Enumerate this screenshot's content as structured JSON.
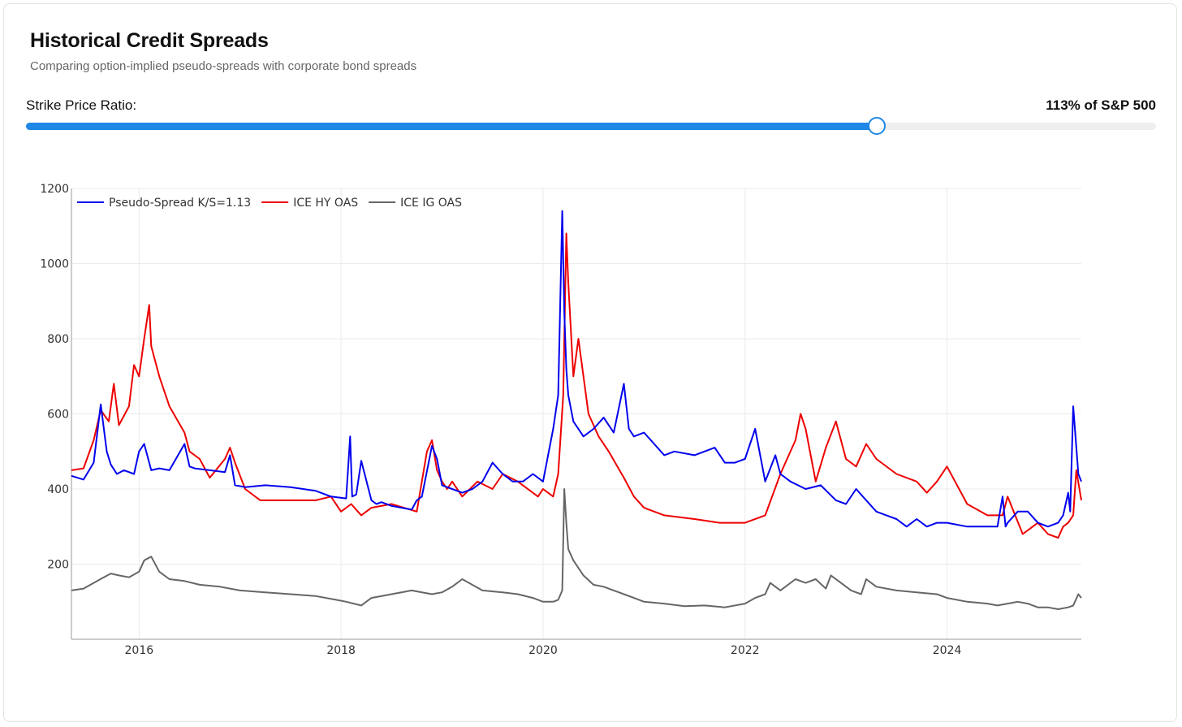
{
  "header": {
    "title": "Historical Credit Spreads",
    "subtitle": "Comparing option-implied pseudo-spreads with corporate bond spreads"
  },
  "slider": {
    "label": "Strike Price Ratio:",
    "value_text": "113% of S&P 500",
    "fraction": 0.753,
    "accent_color": "#1f87e5"
  },
  "chart_data": {
    "type": "line",
    "title": "",
    "xlabel": "",
    "ylabel": "",
    "xlim": [
      2015.33,
      2025.33
    ],
    "ylim": [
      20,
      1200
    ],
    "grid": true,
    "legend_position": "top-left",
    "x_ticks": [
      2016,
      2018,
      2020,
      2022,
      2024
    ],
    "x_tick_labels": [
      "2016",
      "2018",
      "2020",
      "2022",
      "2024"
    ],
    "y_ticks": [
      200,
      400,
      600,
      800,
      1000,
      1200
    ],
    "y_tick_labels": [
      "200",
      "400",
      "600",
      "800",
      "1000",
      "1200"
    ],
    "series": [
      {
        "name": "Pseudo-Spread K/S=1.13",
        "color": "#0000ee",
        "x": [
          2015.33,
          2015.45,
          2015.55,
          2015.62,
          2015.68,
          2015.72,
          2015.78,
          2015.85,
          2015.95,
          2016.0,
          2016.05,
          2016.12,
          2016.2,
          2016.3,
          2016.45,
          2016.5,
          2016.55,
          2016.7,
          2016.85,
          2016.9,
          2016.95,
          2017.05,
          2017.25,
          2017.5,
          2017.75,
          2017.9,
          2018.05,
          2018.09,
          2018.11,
          2018.15,
          2018.2,
          2018.3,
          2018.35,
          2018.4,
          2018.5,
          2018.7,
          2018.75,
          2018.8,
          2018.9,
          2018.95,
          2019.0,
          2019.1,
          2019.2,
          2019.3,
          2019.4,
          2019.5,
          2019.6,
          2019.7,
          2019.8,
          2019.9,
          2020.0,
          2020.1,
          2020.15,
          2020.19,
          2020.21,
          2020.23,
          2020.25,
          2020.3,
          2020.4,
          2020.5,
          2020.6,
          2020.7,
          2020.8,
          2020.85,
          2020.9,
          2021.0,
          2021.1,
          2021.2,
          2021.3,
          2021.5,
          2021.7,
          2021.8,
          2021.9,
          2022.0,
          2022.1,
          2022.2,
          2022.3,
          2022.35,
          2022.45,
          2022.6,
          2022.75,
          2022.9,
          2023.0,
          2023.1,
          2023.2,
          2023.3,
          2023.4,
          2023.5,
          2023.6,
          2023.7,
          2023.8,
          2023.9,
          2024.0,
          2024.2,
          2024.4,
          2024.5,
          2024.55,
          2024.58,
          2024.6,
          2024.7,
          2024.8,
          2024.9,
          2025.0,
          2025.1,
          2025.15,
          2025.2,
          2025.22,
          2025.25,
          2025.3,
          2025.33
        ],
        "y": [
          435,
          425,
          470,
          625,
          500,
          465,
          440,
          450,
          440,
          500,
          520,
          450,
          455,
          450,
          520,
          460,
          455,
          450,
          445,
          490,
          410,
          405,
          410,
          405,
          395,
          380,
          375,
          540,
          380,
          385,
          475,
          370,
          360,
          365,
          355,
          345,
          370,
          380,
          515,
          480,
          410,
          400,
          390,
          400,
          420,
          470,
          440,
          420,
          420,
          440,
          420,
          560,
          650,
          1140,
          870,
          720,
          650,
          580,
          540,
          560,
          590,
          550,
          680,
          560,
          540,
          550,
          520,
          490,
          500,
          490,
          510,
          470,
          470,
          480,
          560,
          420,
          490,
          440,
          420,
          400,
          410,
          370,
          360,
          400,
          370,
          340,
          330,
          320,
          300,
          320,
          300,
          310,
          310,
          300,
          300,
          300,
          380,
          300,
          310,
          340,
          340,
          310,
          300,
          310,
          330,
          390,
          340,
          620,
          440,
          420
        ]
      },
      {
        "name": "ICE HY OAS",
        "color": "#ee0000",
        "x": [
          2015.33,
          2015.45,
          2015.55,
          2015.62,
          2015.7,
          2015.75,
          2015.8,
          2015.9,
          2015.95,
          2016.0,
          2016.05,
          2016.1,
          2016.12,
          2016.2,
          2016.3,
          2016.45,
          2016.5,
          2016.6,
          2016.7,
          2016.85,
          2016.9,
          2016.95,
          2017.05,
          2017.2,
          2017.5,
          2017.75,
          2017.9,
          2018.0,
          2018.1,
          2018.2,
          2018.3,
          2018.5,
          2018.75,
          2018.85,
          2018.9,
          2018.95,
          2019.0,
          2019.05,
          2019.1,
          2019.2,
          2019.35,
          2019.5,
          2019.6,
          2019.75,
          2019.95,
          2020.0,
          2020.1,
          2020.15,
          2020.2,
          2020.23,
          2020.25,
          2020.3,
          2020.35,
          2020.45,
          2020.55,
          2020.65,
          2020.8,
          2020.9,
          2021.0,
          2021.2,
          2021.5,
          2021.75,
          2022.0,
          2022.2,
          2022.35,
          2022.5,
          2022.55,
          2022.6,
          2022.7,
          2022.8,
          2022.9,
          2023.0,
          2023.1,
          2023.2,
          2023.3,
          2023.5,
          2023.7,
          2023.8,
          2023.9,
          2024.0,
          2024.2,
          2024.4,
          2024.55,
          2024.6,
          2024.75,
          2024.9,
          2025.0,
          2025.1,
          2025.15,
          2025.2,
          2025.25,
          2025.28,
          2025.33
        ],
        "y": [
          450,
          455,
          530,
          610,
          580,
          680,
          570,
          620,
          730,
          700,
          800,
          890,
          780,
          700,
          620,
          550,
          500,
          480,
          430,
          480,
          510,
          470,
          400,
          370,
          370,
          370,
          380,
          340,
          360,
          330,
          350,
          360,
          340,
          500,
          530,
          450,
          420,
          400,
          420,
          380,
          420,
          400,
          440,
          420,
          380,
          400,
          380,
          440,
          650,
          1080,
          950,
          700,
          800,
          600,
          540,
          500,
          430,
          380,
          350,
          330,
          320,
          310,
          310,
          330,
          440,
          530,
          600,
          560,
          420,
          510,
          580,
          480,
          460,
          520,
          480,
          440,
          420,
          390,
          420,
          460,
          360,
          330,
          330,
          380,
          280,
          310,
          280,
          270,
          300,
          310,
          330,
          450,
          370
        ]
      },
      {
        "name": "ICE IG OAS",
        "color": "#666666",
        "x": [
          2015.33,
          2015.45,
          2015.55,
          2015.65,
          2015.72,
          2015.8,
          2015.9,
          2016.0,
          2016.05,
          2016.12,
          2016.2,
          2016.3,
          2016.45,
          2016.6,
          2016.8,
          2017.0,
          2017.25,
          2017.5,
          2017.75,
          2017.95,
          2018.05,
          2018.2,
          2018.3,
          2018.5,
          2018.7,
          2018.9,
          2019.0,
          2019.1,
          2019.2,
          2019.4,
          2019.6,
          2019.75,
          2019.9,
          2020.0,
          2020.1,
          2020.15,
          2020.19,
          2020.21,
          2020.23,
          2020.25,
          2020.3,
          2020.4,
          2020.5,
          2020.6,
          2020.7,
          2020.8,
          2020.9,
          2021.0,
          2021.2,
          2021.4,
          2021.6,
          2021.8,
          2022.0,
          2022.1,
          2022.2,
          2022.25,
          2022.35,
          2022.5,
          2022.6,
          2022.7,
          2022.8,
          2022.85,
          2022.95,
          2023.05,
          2023.15,
          2023.2,
          2023.3,
          2023.5,
          2023.7,
          2023.9,
          2024.0,
          2024.2,
          2024.4,
          2024.5,
          2024.6,
          2024.7,
          2024.8,
          2024.9,
          2025.0,
          2025.1,
          2025.2,
          2025.25,
          2025.3,
          2025.33
        ],
        "y": [
          130,
          135,
          150,
          165,
          175,
          170,
          165,
          180,
          210,
          220,
          180,
          160,
          155,
          145,
          140,
          130,
          125,
          120,
          115,
          105,
          100,
          90,
          110,
          120,
          130,
          120,
          125,
          140,
          160,
          130,
          125,
          120,
          110,
          100,
          100,
          105,
          130,
          400,
          310,
          240,
          210,
          170,
          145,
          140,
          130,
          120,
          110,
          100,
          95,
          88,
          90,
          85,
          95,
          110,
          120,
          150,
          130,
          160,
          150,
          160,
          135,
          170,
          150,
          130,
          120,
          160,
          140,
          130,
          125,
          120,
          110,
          100,
          95,
          90,
          95,
          100,
          95,
          85,
          85,
          80,
          85,
          90,
          120,
          110
        ]
      }
    ]
  }
}
